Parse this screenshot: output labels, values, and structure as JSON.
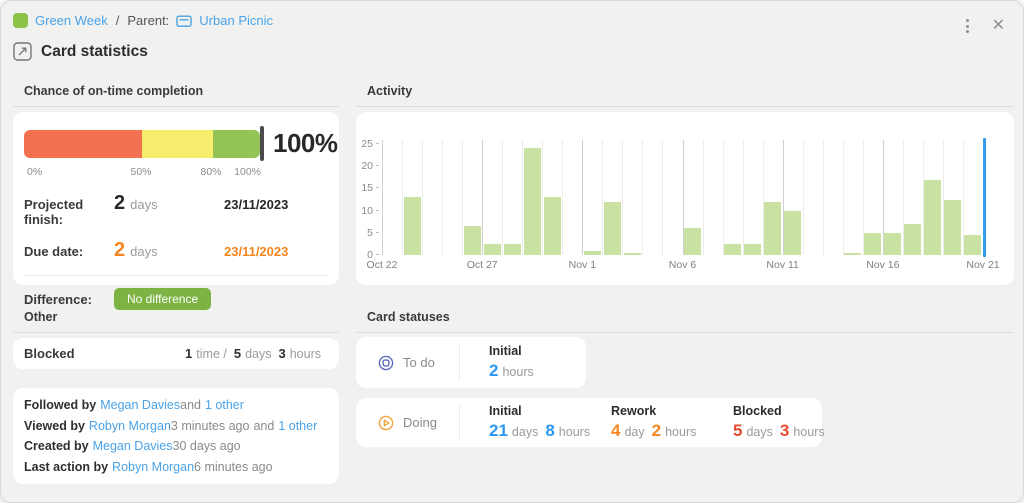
{
  "header": {
    "breadcrumb": {
      "card_color": "#8bc34a",
      "card_title": "Green Week",
      "separator": "/",
      "parent_label": "Parent:",
      "parent_title": "Urban Picnic"
    },
    "title": "Card statistics"
  },
  "completion": {
    "section_title": "Chance of on-time completion",
    "gauge": {
      "value_label": "100%",
      "segments": [
        {
          "color": "#f3714f",
          "width_pct": 50
        },
        {
          "color": "#f5ed6b",
          "width_pct": 30
        },
        {
          "color": "#94c356",
          "width_pct": 20
        }
      ],
      "scale_labels": [
        "0%",
        "50%",
        "80%",
        "100%"
      ]
    },
    "projected": {
      "label": "Projected finish:",
      "value": "2",
      "unit": "days",
      "date": "23/11/2023"
    },
    "due": {
      "label": "Due date:",
      "value": "2",
      "unit": "days",
      "date": "23/11/2023"
    },
    "difference": {
      "label": "Difference:",
      "badge": "No difference",
      "badge_color": "#7cb342"
    }
  },
  "activity": {
    "section_title": "Activity"
  },
  "chart_data": {
    "type": "bar",
    "title": "Activity",
    "x": [
      "Oct 22",
      "Oct 23",
      "Oct 24",
      "Oct 25",
      "Oct 26",
      "Oct 27",
      "Oct 28",
      "Oct 29",
      "Oct 30",
      "Oct 31",
      "Nov 1",
      "Nov 2",
      "Nov 3",
      "Nov 4",
      "Nov 5",
      "Nov 6",
      "Nov 7",
      "Nov 8",
      "Nov 9",
      "Nov 10",
      "Nov 11",
      "Nov 12",
      "Nov 13",
      "Nov 14",
      "Nov 15",
      "Nov 16",
      "Nov 17",
      "Nov 18",
      "Nov 19",
      "Nov 20"
    ],
    "values": [
      0,
      13,
      0,
      0,
      6.5,
      2.5,
      2.5,
      24,
      13,
      0,
      1,
      12,
      0.5,
      0,
      0,
      6,
      0,
      2.5,
      2.5,
      12,
      10,
      0,
      0,
      0.5,
      5,
      5,
      7,
      17,
      12.5,
      4.5
    ],
    "ylim": [
      0,
      25
    ],
    "yticks": [
      0,
      5,
      10,
      15,
      20,
      25
    ],
    "x_tick_positions": [
      0,
      5,
      10,
      15,
      20,
      25,
      30
    ],
    "x_tick_labels": [
      "Oct 22",
      "Oct 27",
      "Nov 1",
      "Nov 6",
      "Nov 11",
      "Nov 16",
      "Nov 21"
    ],
    "today_index": 30,
    "bar_color": "#c9e1a3",
    "grid_color": "#ededeb",
    "grid_major_color": "#d0d0ce",
    "today_line_color": "#2f9bf2",
    "legend": "none",
    "grid": "vertical-only"
  },
  "other": {
    "section_title": "Other",
    "blocked": {
      "label": "Blocked",
      "number_color": "#2f2f2f",
      "parts": [
        {
          "n": "1",
          "u": "time /"
        },
        {
          "n": "5",
          "u": "days"
        },
        {
          "n": "3",
          "u": "hours"
        }
      ]
    },
    "people": [
      {
        "segments": [
          {
            "text": "Followed by",
            "kind": "label"
          },
          {
            "text": "Megan Davies",
            "kind": "link"
          },
          {
            "text": "and",
            "kind": "plain"
          },
          {
            "text": "1 other",
            "kind": "link"
          }
        ]
      },
      {
        "segments": [
          {
            "text": "Viewed by",
            "kind": "label"
          },
          {
            "text": "Robyn Morgan",
            "kind": "link"
          },
          {
            "text": "3 minutes ago",
            "kind": "plain"
          },
          {
            "text": "and",
            "kind": "plain"
          },
          {
            "text": "1 other",
            "kind": "link"
          }
        ]
      },
      {
        "segments": [
          {
            "text": "Created by",
            "kind": "label"
          },
          {
            "text": "Megan Davies",
            "kind": "link"
          },
          {
            "text": "30 days ago",
            "kind": "plain"
          }
        ]
      },
      {
        "segments": [
          {
            "text": "Last action by",
            "kind": "label"
          },
          {
            "text": "Robyn Morgan",
            "kind": "link"
          },
          {
            "text": "6 minutes ago",
            "kind": "plain"
          }
        ]
      }
    ]
  },
  "statuses": {
    "section_title": "Card statuses",
    "todo": {
      "label": "To do",
      "icon_color": "#5d6cc0",
      "columns": [
        {
          "title": "Initial",
          "number_color": "#2e97ef",
          "parts": [
            {
              "n": "2",
              "u": "hours"
            }
          ]
        }
      ]
    },
    "doing": {
      "label": "Doing",
      "icon_color": "#f0a339",
      "columns": [
        {
          "title": "Initial",
          "number_color": "#2e97ef",
          "parts": [
            {
              "n": "21",
              "u": "days"
            },
            {
              "n": "8",
              "u": "hours"
            }
          ]
        },
        {
          "title": "Rework",
          "number_color": "#f5861d",
          "parts": [
            {
              "n": "4",
              "u": "day"
            },
            {
              "n": "2",
              "u": "hours"
            }
          ]
        },
        {
          "title": "Blocked",
          "number_color": "#e64a2e",
          "parts": [
            {
              "n": "5",
              "u": "days"
            },
            {
              "n": "3",
              "u": "hours"
            }
          ]
        }
      ]
    }
  }
}
